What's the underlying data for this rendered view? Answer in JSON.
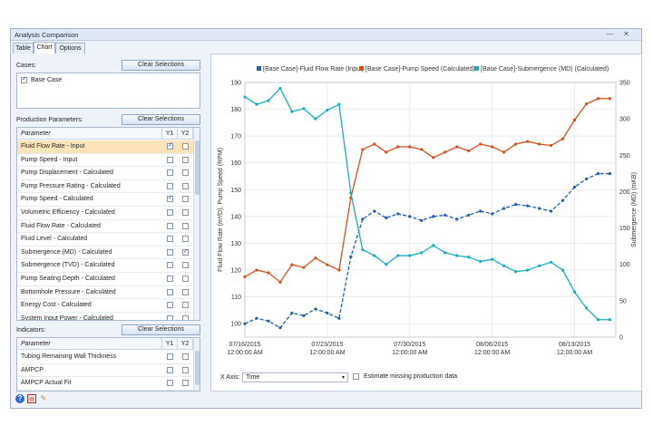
{
  "window": {
    "title": "Analysis Comparison",
    "minimize": "—",
    "close": "✕"
  },
  "tabs": [
    {
      "label": "Table"
    },
    {
      "label": "Chart"
    },
    {
      "label": "Options"
    }
  ],
  "cases": {
    "label": "Cases:",
    "clear_label": "Clear Selections",
    "items": [
      {
        "label": "Base Case",
        "checked": true
      }
    ]
  },
  "production": {
    "label": "Production Parameters:",
    "clear_label": "Clear Selections",
    "col_param": "Parameter",
    "col_y1": "Y1",
    "col_y2": "Y2",
    "rows": [
      {
        "name": "Fluid Flow Rate - Input",
        "y1": true,
        "y2": false,
        "selected": true
      },
      {
        "name": "Pump Speed - Input",
        "y1": false,
        "y2": false
      },
      {
        "name": "Pump Displacement - Calculated",
        "y1": false,
        "y2": false
      },
      {
        "name": "Pump Pressure Rating - Calculated",
        "y1": false,
        "y2": false
      },
      {
        "name": "Pump Speed - Calculated",
        "y1": true,
        "y2": false
      },
      {
        "name": "Volumetric Efficiency - Calculated",
        "y1": false,
        "y2": false
      },
      {
        "name": "Fluid Flow Rate - Calculated",
        "y1": false,
        "y2": false
      },
      {
        "name": "Fluid Level - Calculated",
        "y1": false,
        "y2": false
      },
      {
        "name": "Submergence (MD) - Calculated",
        "y1": false,
        "y2": true
      },
      {
        "name": "Submergence (TVD) - Calculated",
        "y1": false,
        "y2": false
      },
      {
        "name": "Pump Seating Depth - Calculated",
        "y1": false,
        "y2": false
      },
      {
        "name": "Bottomhole Pressure - Calculated",
        "y1": false,
        "y2": false
      },
      {
        "name": "Energy Cost - Calculated",
        "y1": false,
        "y2": false
      },
      {
        "name": "System Input Power - Calculated",
        "y1": false,
        "y2": false
      }
    ]
  },
  "indicators": {
    "label": "Indicators:",
    "clear_label": "Clear Selections",
    "col_param": "Parameter",
    "col_y1": "Y1",
    "col_y2": "Y2",
    "rows": [
      {
        "name": "Tubing Remaining Wall Thickness",
        "y1": false,
        "y2": false
      },
      {
        "name": "AMPCP",
        "y1": false,
        "y2": false
      },
      {
        "name": "AMPCP Actual Fit",
        "y1": false,
        "y2": false
      }
    ]
  },
  "xaxis_control": {
    "label": "X Axis:",
    "value": "Time",
    "estimate_label": "Estimate missing production data",
    "estimate_checked": false
  },
  "status_icons": [
    "help-icon",
    "pdf-icon",
    "edit-icon"
  ],
  "chart_data": {
    "type": "line",
    "legend_position": "top",
    "ylabel_left": "Fluid Flow Rate (m³/D), Pump Speed (RPM)",
    "ylabel_right": "Submergence (MD) (mKB)",
    "ylim_left": [
      95,
      190
    ],
    "ylim_right": [
      0,
      350
    ],
    "yticks_left": [
      100,
      110,
      120,
      130,
      140,
      150,
      160,
      170,
      180,
      190
    ],
    "yticks_right": [
      0,
      50,
      100,
      150,
      200,
      250,
      300,
      350
    ],
    "grid": true,
    "x_ticks": [
      {
        "day": 0,
        "date": "07/16/2015",
        "time": "12:00:00 AM"
      },
      {
        "day": 7,
        "date": "07/23/2015",
        "time": "12:00:00 AM"
      },
      {
        "day": 14,
        "date": "07/30/2015",
        "time": "12:00:00 AM"
      },
      {
        "day": 21,
        "date": "08/06/2015",
        "time": "12:00:00 AM"
      },
      {
        "day": 28,
        "date": "08/13/2015",
        "time": "12:00:00 AM"
      }
    ],
    "x_days": [
      0,
      1,
      2,
      3,
      4,
      5,
      6,
      7,
      8,
      9,
      10,
      11,
      12,
      13,
      14,
      15,
      16,
      17,
      18,
      19,
      20,
      21,
      22,
      23,
      24,
      25,
      26,
      27,
      28,
      29,
      30,
      31
    ],
    "series": [
      {
        "name": "[Base Case]-Fluid Flow Rate (Input)",
        "color": "#2160ad",
        "axis": "left",
        "dash": true,
        "values": [
          100,
          102,
          101,
          98.5,
          104,
          103,
          105.5,
          104,
          102,
          125,
          139,
          142,
          139.5,
          141,
          140,
          138.5,
          140,
          140.5,
          139,
          140.5,
          142,
          141,
          143,
          144.5,
          144,
          143,
          142,
          146,
          151,
          154,
          156,
          156
        ]
      },
      {
        "name": "[Base Case]-Pump Speed (Calculated)",
        "color": "#d2501c",
        "axis": "left",
        "dash": false,
        "values": [
          117.5,
          120,
          119,
          115.5,
          122,
          121,
          124.5,
          122,
          120,
          147,
          165,
          167,
          164,
          166,
          166,
          165,
          162,
          164,
          166,
          164.5,
          167,
          166,
          164,
          167,
          168,
          167,
          166.5,
          169,
          176,
          182,
          184,
          184
        ]
      },
      {
        "name": "[Base Case]-Submergence (MD) (Calculated)",
        "color": "#16aebd",
        "axis": "right",
        "dash": false,
        "values": [
          330,
          320,
          325,
          342,
          310,
          314,
          300,
          312,
          320,
          198,
          120,
          112,
          100,
          112,
          112,
          116,
          126,
          116,
          112,
          110,
          104,
          107,
          98,
          90,
          92,
          98,
          103,
          92,
          62,
          40,
          24,
          24
        ]
      }
    ]
  }
}
